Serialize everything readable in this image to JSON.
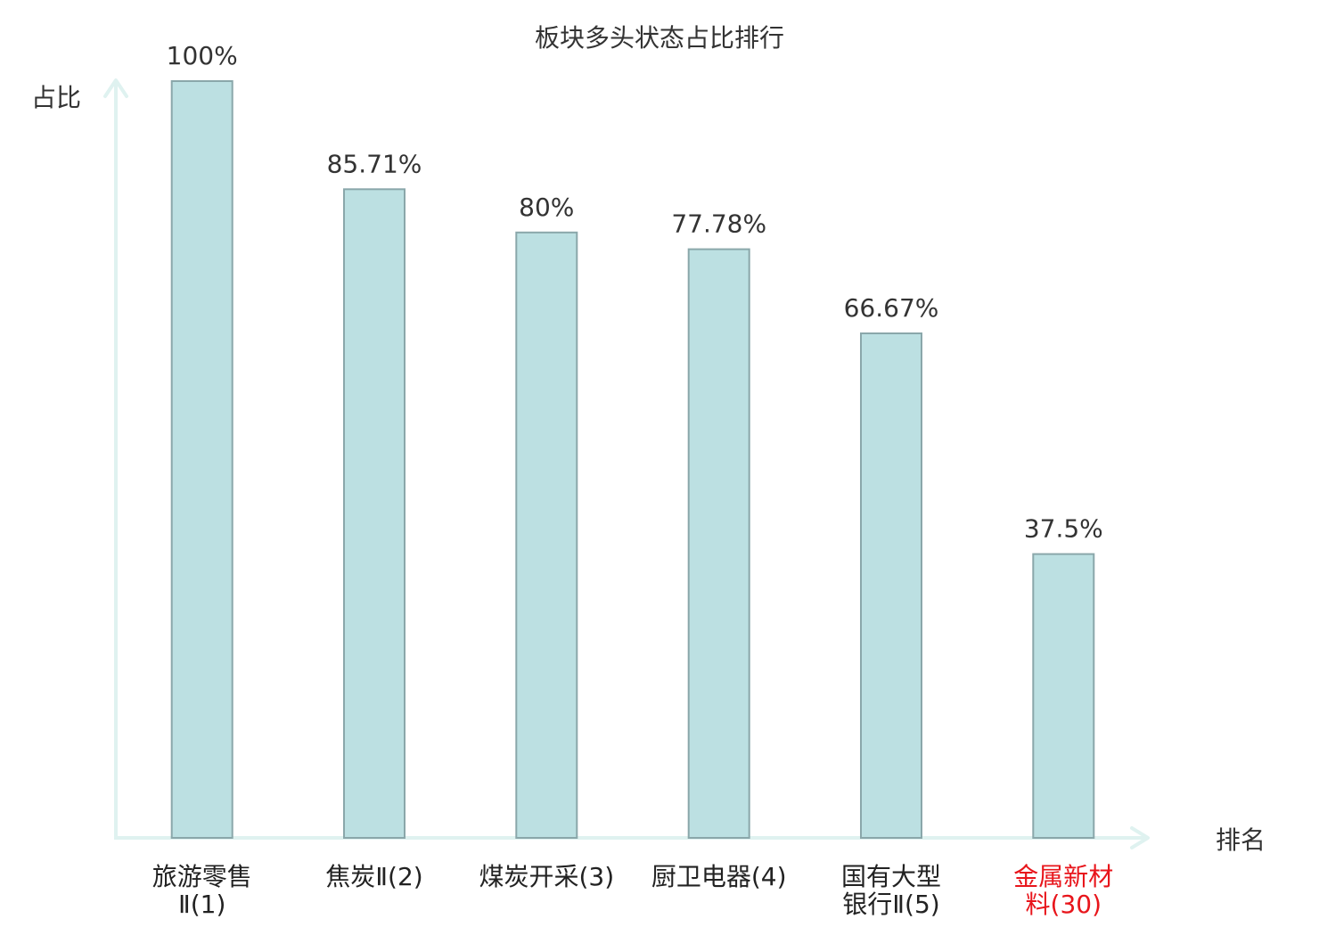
{
  "chart_data": {
    "type": "bar",
    "title": "板块多头状态占比排行",
    "xlabel": "排名",
    "ylabel": "占比",
    "ylim": [
      0,
      100
    ],
    "grid": false,
    "categories": [
      {
        "lines": [
          "旅游零售",
          "Ⅱ(1)"
        ],
        "highlight": false
      },
      {
        "lines": [
          "焦炭Ⅱ(2)"
        ],
        "highlight": false
      },
      {
        "lines": [
          "煤炭开采(3)"
        ],
        "highlight": false
      },
      {
        "lines": [
          "厨卫电器(4)"
        ],
        "highlight": false
      },
      {
        "lines": [
          "国有大型",
          "银行Ⅱ(5)"
        ],
        "highlight": false
      },
      {
        "lines": [
          "金属新材",
          "料(30)"
        ],
        "highlight": true
      }
    ],
    "values": [
      100,
      85.71,
      80,
      77.78,
      66.67,
      37.5
    ],
    "value_labels": [
      "100%",
      "85.71%",
      "80%",
      "77.78%",
      "66.67%",
      "37.5%"
    ],
    "colors": {
      "bar_fill": "#bce0e2",
      "bar_stroke": "#8aa7aa",
      "axis": "#dff2f0",
      "text": "#333333",
      "label": "#222222",
      "highlight": "#e8151b"
    }
  }
}
